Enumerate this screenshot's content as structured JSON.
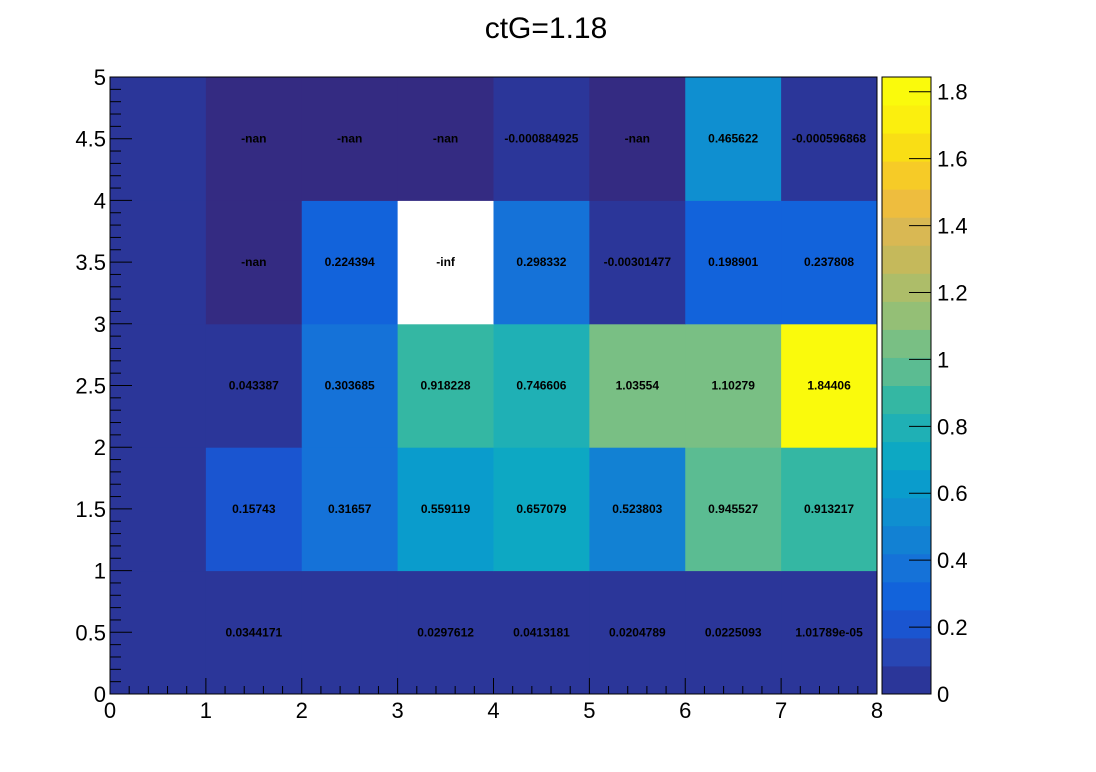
{
  "chart_data": {
    "type": "heatmap",
    "title": "ctG=1.18",
    "xlabel": "",
    "ylabel": "",
    "xlim": [
      0,
      8
    ],
    "ylim": [
      0,
      5
    ],
    "x_ticks": [
      "0",
      "1",
      "2",
      "3",
      "4",
      "5",
      "6",
      "7",
      "8"
    ],
    "y_ticks": [
      "0",
      "0.5",
      "1",
      "1.5",
      "2",
      "2.5",
      "3",
      "3.5",
      "4",
      "4.5",
      "5"
    ],
    "colorbar": {
      "range": [
        0,
        1.84406
      ],
      "ticks": [
        "0",
        "0.2",
        "0.4",
        "0.6",
        "0.8",
        "1",
        "1.2",
        "1.4",
        "1.6",
        "1.8"
      ],
      "tick_values": [
        0,
        0.2,
        0.4,
        0.6,
        0.8,
        1,
        1.2,
        1.4,
        1.6,
        1.8
      ],
      "palette": [
        "#2b3699",
        "#2846b4",
        "#1a55d0",
        "#1263db",
        "#1572d8",
        "#1281d3",
        "#0f8fd0",
        "#0a9ccc",
        "#0da8c3",
        "#1fb0b5",
        "#34b7a3",
        "#5bbc92",
        "#79bf84",
        "#94bf76",
        "#adbd69",
        "#c5b95b",
        "#d9b853",
        "#eebd3e",
        "#f6cb27",
        "#f9de15",
        "#fbef0e",
        "#fafa0c"
      ]
    },
    "rows": [
      {
        "y": [
          0,
          1
        ],
        "cells": [
          {
            "x": [
              0,
              1
            ],
            "value": 0,
            "color": "#2b3699",
            "label": ""
          },
          {
            "x": [
              1,
              2
            ],
            "value": 0.0344171,
            "color": "#2b3699",
            "label": "0.0344171"
          },
          {
            "x": [
              2,
              3
            ],
            "value": 0,
            "color": "#2b3699",
            "label": ""
          },
          {
            "x": [
              3,
              4
            ],
            "value": 0.0297612,
            "color": "#2b3699",
            "label": "0.0297612"
          },
          {
            "x": [
              4,
              5
            ],
            "value": 0.0413181,
            "color": "#2b3699",
            "label": "0.0413181"
          },
          {
            "x": [
              5,
              6
            ],
            "value": 0.0204789,
            "color": "#2b3699",
            "label": "0.0204789"
          },
          {
            "x": [
              6,
              7
            ],
            "value": 0.0225093,
            "color": "#2b3699",
            "label": "0.0225093"
          },
          {
            "x": [
              7,
              8
            ],
            "value": 1.01789e-05,
            "color": "#2b3699",
            "label": "1.01789e-05"
          }
        ]
      },
      {
        "y": [
          1,
          2
        ],
        "cells": [
          {
            "x": [
              0,
              1
            ],
            "value": 0,
            "color": "#2b3699",
            "label": ""
          },
          {
            "x": [
              1,
              2
            ],
            "value": 0.15743,
            "color": "#1a55d0",
            "label": "0.15743"
          },
          {
            "x": [
              2,
              3
            ],
            "value": 0.31657,
            "color": "#1572d8",
            "label": "0.31657"
          },
          {
            "x": [
              3,
              4
            ],
            "value": 0.559119,
            "color": "#0a9ccc",
            "label": "0.559119"
          },
          {
            "x": [
              4,
              5
            ],
            "value": 0.657079,
            "color": "#0da8c3",
            "label": "0.657079"
          },
          {
            "x": [
              5,
              6
            ],
            "value": 0.523803,
            "color": "#1281d3",
            "label": "0.523803"
          },
          {
            "x": [
              6,
              7
            ],
            "value": 0.945527,
            "color": "#5bbc92",
            "label": "0.945527"
          },
          {
            "x": [
              7,
              8
            ],
            "value": 0.913217,
            "color": "#34b7a3",
            "label": "0.913217"
          }
        ]
      },
      {
        "y": [
          2,
          3
        ],
        "cells": [
          {
            "x": [
              0,
              1
            ],
            "value": 0,
            "color": "#2b3699",
            "label": ""
          },
          {
            "x": [
              1,
              2
            ],
            "value": 0.043387,
            "color": "#2b3699",
            "label": "0.043387"
          },
          {
            "x": [
              2,
              3
            ],
            "value": 0.303685,
            "color": "#1572d8",
            "label": "0.303685"
          },
          {
            "x": [
              3,
              4
            ],
            "value": 0.918228,
            "color": "#34b7a3",
            "label": "0.918228"
          },
          {
            "x": [
              4,
              5
            ],
            "value": 0.746606,
            "color": "#1fb0b5",
            "label": "0.746606"
          },
          {
            "x": [
              5,
              6
            ],
            "value": 1.03554,
            "color": "#79bf84",
            "label": "1.03554"
          },
          {
            "x": [
              6,
              7
            ],
            "value": 1.10279,
            "color": "#79bf84",
            "label": "1.10279"
          },
          {
            "x": [
              7,
              8
            ],
            "value": 1.84406,
            "color": "#fafa0c",
            "label": "1.84406"
          }
        ]
      },
      {
        "y": [
          3,
          4
        ],
        "cells": [
          {
            "x": [
              0,
              1
            ],
            "value": 0,
            "color": "#2b3699",
            "label": ""
          },
          {
            "x": [
              1,
              2
            ],
            "value": null,
            "color": "#342b82",
            "label": "-nan"
          },
          {
            "x": [
              2,
              3
            ],
            "value": 0.224394,
            "color": "#1263db",
            "label": "0.224394"
          },
          {
            "x": [
              3,
              4
            ],
            "value": null,
            "color": "#ffffff",
            "label": "-inf"
          },
          {
            "x": [
              4,
              5
            ],
            "value": 0.298332,
            "color": "#1572d8",
            "label": "0.298332"
          },
          {
            "x": [
              5,
              6
            ],
            "value": -0.00301477,
            "color": "#2b3699",
            "label": "-0.00301477"
          },
          {
            "x": [
              6,
              7
            ],
            "value": 0.198901,
            "color": "#1263db",
            "label": "0.198901"
          },
          {
            "x": [
              7,
              8
            ],
            "value": 0.237808,
            "color": "#1263db",
            "label": "0.237808"
          }
        ]
      },
      {
        "y": [
          4,
          5
        ],
        "cells": [
          {
            "x": [
              0,
              1
            ],
            "value": 0,
            "color": "#2b3699",
            "label": ""
          },
          {
            "x": [
              1,
              2
            ],
            "value": null,
            "color": "#342b82",
            "label": "-nan"
          },
          {
            "x": [
              2,
              3
            ],
            "value": null,
            "color": "#342b82",
            "label": "-nan"
          },
          {
            "x": [
              3,
              4
            ],
            "value": null,
            "color": "#342b82",
            "label": "-nan"
          },
          {
            "x": [
              4,
              5
            ],
            "value": -0.000884925,
            "color": "#2b3699",
            "label": "-0.000884925"
          },
          {
            "x": [
              5,
              6
            ],
            "value": null,
            "color": "#342b82",
            "label": "-nan"
          },
          {
            "x": [
              6,
              7
            ],
            "value": 0.465622,
            "color": "#0f8fd0",
            "label": "0.465622"
          },
          {
            "x": [
              7,
              8
            ],
            "value": -0.000596868,
            "color": "#2b3699",
            "label": "-0.000596868"
          }
        ]
      }
    ]
  }
}
